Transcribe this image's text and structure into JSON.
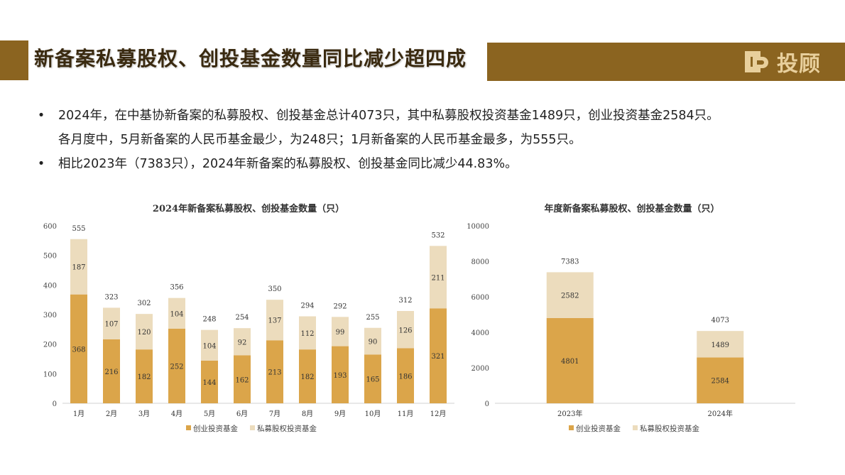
{
  "header": {
    "title": "新备案私募股权、创投基金数量同比减少超四成",
    "logo_text": "投顾",
    "logo_icon": "dp-logo-icon"
  },
  "bullets": [
    {
      "line1": "2024年，在中基协新备案的私募股权、创投基金总计4073只，其中私募股权投资基金1489只，创业投资基金2584只。",
      "line2": "各月度中，5月新备案的人民币基金最少，为248只；1月新备案的人民币基金最多，为555只。"
    },
    {
      "line1": "相比2023年（7383只），2024年新备案的私募股权、创投基金同比减少44.83%。",
      "line2": ""
    }
  ],
  "colors": {
    "accent": "#8b6420",
    "series_vc": "#dba54a",
    "series_pe": "#ecdcbd"
  },
  "chart_data": [
    {
      "type": "bar",
      "stacked": true,
      "title": "2024年新备案私募股权、创投基金数量（只）",
      "categories": [
        "1月",
        "2月",
        "3月",
        "4月",
        "5月",
        "6月",
        "7月",
        "8月",
        "9月",
        "10月",
        "11月",
        "12月"
      ],
      "series": [
        {
          "name": "创业投资基金",
          "values": [
            368,
            216,
            182,
            252,
            144,
            162,
            213,
            182,
            193,
            165,
            186,
            321
          ]
        },
        {
          "name": "私募股权投资基金",
          "values": [
            187,
            107,
            120,
            104,
            104,
            92,
            137,
            112,
            99,
            90,
            126,
            211
          ]
        }
      ],
      "totals": [
        555,
        323,
        302,
        356,
        248,
        254,
        350,
        294,
        292,
        255,
        312,
        532
      ],
      "ylim": [
        0,
        600
      ],
      "yticks": [
        0,
        100,
        200,
        300,
        400,
        500,
        600
      ],
      "legend": "bottom",
      "grid": false
    },
    {
      "type": "bar",
      "stacked": true,
      "title": "年度新备案私募股权、创投基金数量（只）",
      "categories": [
        "2023年",
        "2024年"
      ],
      "series": [
        {
          "name": "创业投资基金",
          "values": [
            4801,
            2584
          ]
        },
        {
          "name": "私募股权投资基金",
          "values": [
            2582,
            1489
          ]
        }
      ],
      "totals": [
        7383,
        4073
      ],
      "ylim": [
        0,
        10000
      ],
      "yticks": [
        0,
        2000,
        4000,
        6000,
        8000,
        10000
      ],
      "legend": "bottom",
      "grid": false
    }
  ]
}
